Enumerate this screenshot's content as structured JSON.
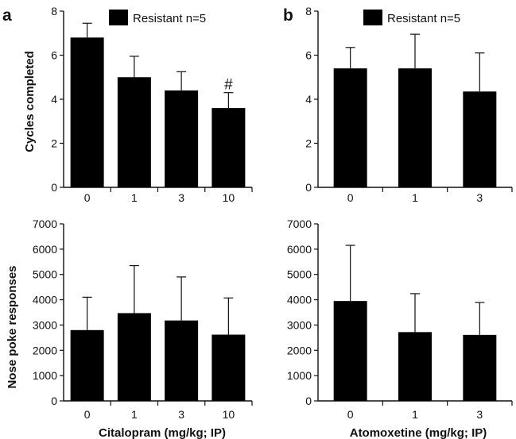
{
  "figure": {
    "panel_labels": [
      "a",
      "b"
    ],
    "y_label_top": "Cycles completed",
    "y_label_bottom": "Nose poke responses",
    "x_label_left": "Citalopram (mg/kg; IP)",
    "x_label_right": "Atomoxetine (mg/kg; IP)"
  },
  "colors": {
    "bar": "#000000",
    "axis": "#111111",
    "background": "#ffffff"
  },
  "chart_data": [
    {
      "type": "bar",
      "panel": "a",
      "categories": [
        "0",
        "1",
        "3",
        "10"
      ],
      "values": [
        6.8,
        5.0,
        4.4,
        3.6
      ],
      "errors": [
        0.65,
        0.95,
        0.85,
        0.7
      ],
      "annotations": [
        "",
        "",
        "",
        "#"
      ],
      "legend": "Resistant n=5",
      "ylabel": "Cycles completed",
      "xlabel": "",
      "ylim": [
        0,
        8
      ],
      "yticks": [
        0,
        2,
        4,
        6,
        8
      ]
    },
    {
      "type": "bar",
      "panel": "b",
      "categories": [
        "0",
        "1",
        "3"
      ],
      "values": [
        5.4,
        5.4,
        4.35
      ],
      "errors": [
        0.95,
        1.55,
        1.75
      ],
      "annotations": [
        "",
        "",
        ""
      ],
      "legend": "Resistant n=5",
      "ylabel": "",
      "xlabel": "",
      "ylim": [
        0,
        8
      ],
      "yticks": [
        0,
        2,
        4,
        6,
        8
      ]
    },
    {
      "type": "bar",
      "panel": "a",
      "categories": [
        "0",
        "1",
        "3",
        "10"
      ],
      "values": [
        2800,
        3470,
        3180,
        2620
      ],
      "errors": [
        1300,
        1880,
        1720,
        1450
      ],
      "annotations": [
        "",
        "",
        "",
        ""
      ],
      "legend": "",
      "ylabel": "Nose poke responses",
      "xlabel": "Citalopram (mg/kg; IP)",
      "ylim": [
        0,
        7000
      ],
      "yticks": [
        0,
        1000,
        2000,
        3000,
        4000,
        5000,
        6000,
        7000
      ]
    },
    {
      "type": "bar",
      "panel": "b",
      "categories": [
        "0",
        "1",
        "3"
      ],
      "values": [
        3950,
        2720,
        2610
      ],
      "errors": [
        2200,
        1520,
        1280
      ],
      "annotations": [
        "",
        "",
        ""
      ],
      "legend": "",
      "ylabel": "",
      "xlabel": "Atomoxetine (mg/kg; IP)",
      "ylim": [
        0,
        7000
      ],
      "yticks": [
        0,
        1000,
        2000,
        3000,
        4000,
        5000,
        6000,
        7000
      ]
    }
  ]
}
